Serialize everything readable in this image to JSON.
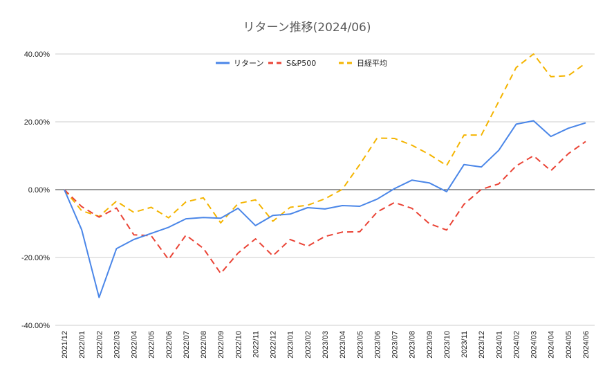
{
  "chart_data": {
    "type": "line",
    "title": "リターン推移(2024/06)",
    "xlabel": "",
    "ylabel": "",
    "ylim": [
      -40,
      40
    ],
    "yticks": [
      40,
      20,
      0,
      -20,
      -40
    ],
    "ytick_labels": [
      "40.00%",
      "20.00%",
      "0.00%",
      "-20.00%",
      "-40.00%"
    ],
    "grid": true,
    "legend_position": "top-center",
    "categories": [
      "2021/12",
      "2022/01",
      "2022/02",
      "2022/03",
      "2022/04",
      "2022/05",
      "2022/06",
      "2022/07",
      "2022/08",
      "2022/09",
      "2022/10",
      "2022/11",
      "2022/12",
      "2023/01",
      "2023/02",
      "2023/03",
      "2023/04",
      "2023/05",
      "2023/06",
      "2023/07",
      "2023/08",
      "2023/09",
      "2023/10",
      "2023/11",
      "2023/12",
      "2024/01",
      "2024/02",
      "2024/03",
      "2024/04",
      "2024/05",
      "2024/06"
    ],
    "series": [
      {
        "name": "リターン",
        "color": "#4a86e8",
        "style": "solid",
        "values": [
          0,
          -11.8,
          -31.8,
          -17.4,
          -14.7,
          -12.9,
          -11.1,
          -8.6,
          -8.2,
          -8.4,
          -5.5,
          -10.6,
          -7.6,
          -7.2,
          -5.3,
          -5.7,
          -4.7,
          -4.9,
          -2.8,
          0.3,
          2.8,
          2.0,
          -0.6,
          7.4,
          6.7,
          11.6,
          19.3,
          20.3,
          15.7,
          18.1,
          19.7
        ]
      },
      {
        "name": "S&P500",
        "color": "#ea4335",
        "style": "dashed",
        "values": [
          0,
          -5.0,
          -8.1,
          -5.4,
          -13.3,
          -13.6,
          -20.6,
          -13.4,
          -17.3,
          -24.7,
          -18.7,
          -14.5,
          -19.5,
          -14.7,
          -16.7,
          -13.8,
          -12.5,
          -12.4,
          -6.6,
          -3.8,
          -5.5,
          -10.0,
          -11.9,
          -4.3,
          0.1,
          1.7,
          7.0,
          10.0,
          5.6,
          10.6,
          14.2
        ]
      },
      {
        "name": "日経平均",
        "color": "#f4b400",
        "style": "dashed",
        "values": [
          0,
          -6.2,
          -7.9,
          -3.4,
          -6.7,
          -5.2,
          -8.3,
          -3.6,
          -2.4,
          -9.8,
          -4.1,
          -3.0,
          -9.3,
          -5.2,
          -4.6,
          -2.7,
          0.1,
          7.4,
          15.2,
          15.1,
          13.1,
          10.4,
          7.1,
          16.1,
          16.1,
          26.0,
          36.0,
          40.0,
          33.3,
          33.6,
          37.3
        ]
      }
    ]
  }
}
